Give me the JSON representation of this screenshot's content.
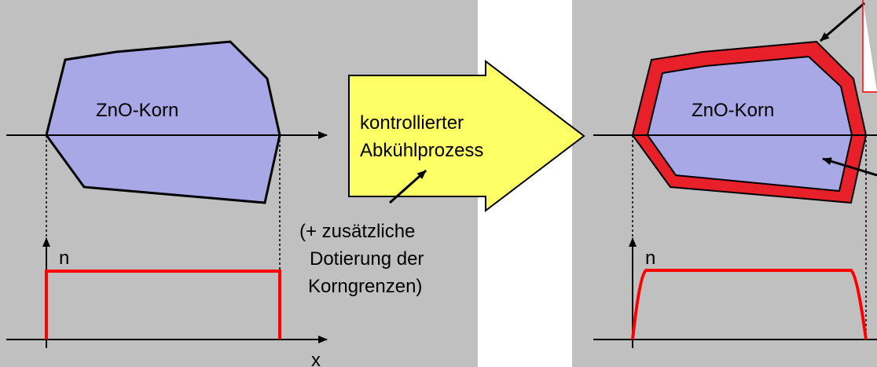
{
  "left_panel": {
    "grain_label": "ZnO-Korn",
    "y_axis_label": "n",
    "x_axis_label": "x"
  },
  "process_arrow": {
    "line1": "kontrollierter",
    "line2": "Abkühlprozess"
  },
  "note": {
    "line1": "(+ zusätzliche",
    "line2": "Dotierung der",
    "line3": "Korngrenzen)"
  },
  "right_panel": {
    "grain_label": "ZnO-Korn",
    "y_axis_label": "n"
  },
  "colors": {
    "panel_bg": "#c0c0c0",
    "grain_fill": "#a8a8e6",
    "boundary_red": "#e8202a",
    "profile_red": "#ff0000",
    "arrow_fill": "#ffff66"
  }
}
